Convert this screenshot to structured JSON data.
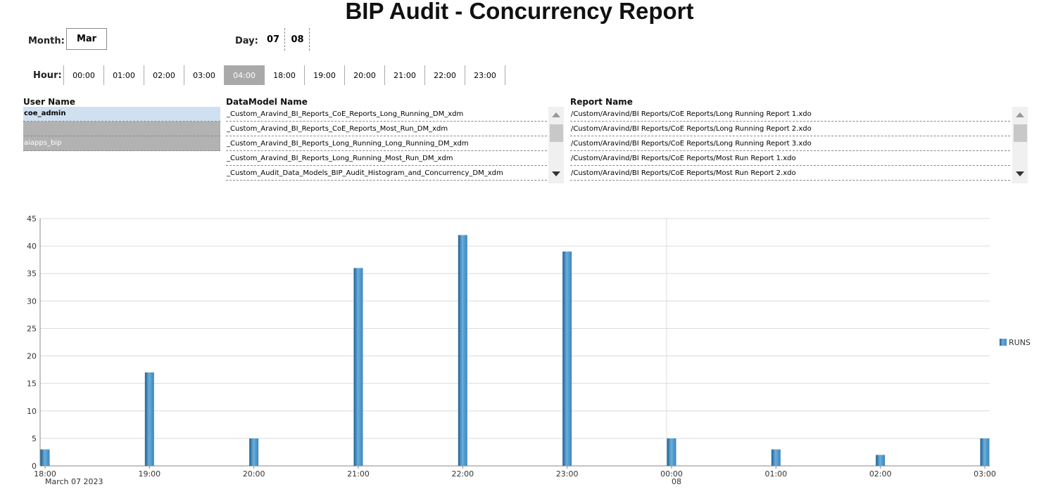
{
  "title": "BIP Audit - Concurrency Report",
  "filters": {
    "month_label": "Month:",
    "month_value": "Mar",
    "day_label": "Day:",
    "days": [
      "07",
      "08"
    ],
    "hour_label": "Hour:",
    "hours": [
      "00:00",
      "01:00",
      "02:00",
      "03:00",
      "04:00",
      "18:00",
      "19:00",
      "20:00",
      "21:00",
      "22:00",
      "23:00"
    ],
    "selected_hour": "04:00"
  },
  "columns": {
    "user": "User Name",
    "datamodel": "DataModel Name",
    "report": "Report Name"
  },
  "users": [
    "coe_admin",
    "",
    "aiapps_bip"
  ],
  "datamodels": [
    "_Custom_Aravind_BI_Reports_CoE_Reports_Long_Running_DM_xdm",
    "_Custom_Aravind_BI_Reports_CoE_Reports_Most_Run_DM_xdm",
    "_Custom_Aravind_BI_Reports_Long_Running_Long_Running_DM_xdm",
    "_Custom_Aravind_BI_Reports_Long_Running_Most_Run_DM_xdm",
    "_Custom_Audit_Data_Models_BIP_Audit_Histogram_and_Concurrency_DM_xdm"
  ],
  "reports": [
    "/Custom/Aravind/BI Reports/CoE Reports/Long Running Report 1.xdo",
    "/Custom/Aravind/BI Reports/CoE Reports/Long Running Report 2.xdo",
    "/Custom/Aravind/BI Reports/CoE Reports/Long Running Report 3.xdo",
    "/Custom/Aravind/BI Reports/CoE Reports/Most Run Report 1.xdo",
    "/Custom/Aravind/BI Reports/CoE Reports/Most Run Report 2.xdo"
  ],
  "colors": {
    "bar": "#3a86c0",
    "bar_dark": "#1e5f92",
    "selected_hour_bg": "#a9a9a9",
    "selected_user_bg": "#cfe0f1"
  },
  "chart_data": {
    "type": "bar",
    "categories": [
      "18:00",
      "19:00",
      "20:00",
      "21:00",
      "22:00",
      "23:00",
      "00:00",
      "01:00",
      "02:00",
      "03:00"
    ],
    "category_sublabels": [
      "March 07 2023",
      "",
      "",
      "",
      "",
      "",
      "08",
      "",
      "",
      ""
    ],
    "series": [
      {
        "name": "RUNS",
        "values": [
          3,
          17,
          5,
          36,
          42,
          39,
          5,
          3,
          2,
          5
        ]
      }
    ],
    "ylim": [
      0,
      45
    ],
    "yticks": [
      0,
      5,
      10,
      15,
      20,
      25,
      30,
      35,
      40,
      45
    ],
    "grid": true,
    "legend": "right"
  }
}
